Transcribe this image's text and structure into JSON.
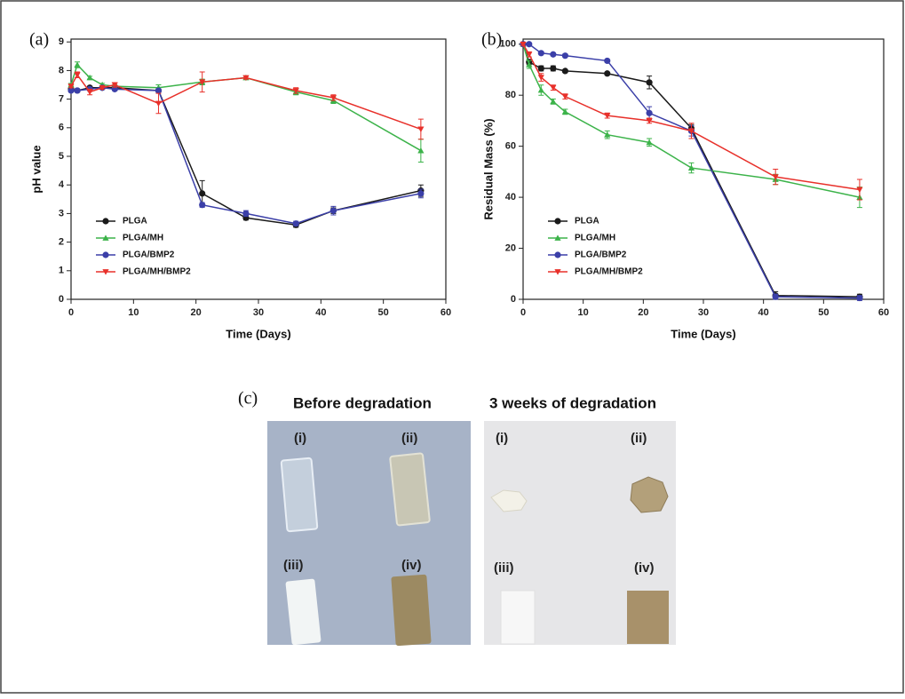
{
  "chart_data": [
    {
      "type": "line",
      "panel_label": "(a)",
      "x_label": "Time (Days)",
      "y_label": "pH value",
      "x": [
        0,
        1,
        3,
        5,
        7,
        14,
        21,
        28,
        36,
        42,
        56
      ],
      "xlim": [
        0,
        60
      ],
      "xticks": [
        0,
        10,
        20,
        30,
        40,
        50,
        60
      ],
      "ylim": [
        0,
        9.1
      ],
      "yticks": [
        0,
        1,
        2,
        3,
        4,
        5,
        6,
        7,
        8,
        9
      ],
      "legend": "lower left",
      "series": [
        {
          "name": "PLGA",
          "color": "#1a1a1a",
          "marker": "circle",
          "values": [
            7.35,
            7.3,
            7.4,
            7.4,
            7.4,
            7.3,
            3.7,
            2.85,
            2.6,
            3.1,
            3.8
          ],
          "errors": [
            0.05,
            0.05,
            0.05,
            0.05,
            0.05,
            0.05,
            0.45,
            0.08,
            0.08,
            0.1,
            0.2
          ]
        },
        {
          "name": "PLGA/MH",
          "color": "#3cb34a",
          "marker": "triangle",
          "values": [
            7.5,
            8.2,
            7.75,
            7.5,
            7.45,
            7.4,
            7.6,
            7.75,
            7.25,
            6.95,
            5.2
          ],
          "errors": [
            0.05,
            0.1,
            0.05,
            0.05,
            0.05,
            0.1,
            0.1,
            0.05,
            0.1,
            0.1,
            0.4
          ]
        },
        {
          "name": "PLGA/BMP2",
          "color": "#3b3fa8",
          "marker": "circle",
          "values": [
            7.3,
            7.3,
            7.35,
            7.4,
            7.35,
            7.3,
            3.3,
            3.0,
            2.65,
            3.1,
            3.7
          ],
          "errors": [
            0.05,
            0.05,
            0.05,
            0.05,
            0.05,
            0.05,
            0.08,
            0.1,
            0.08,
            0.15,
            0.15
          ]
        },
        {
          "name": "PLGA/MH/BMP2",
          "color": "#e8302a",
          "marker": "triangle-down",
          "values": [
            7.45,
            7.85,
            7.25,
            7.4,
            7.5,
            6.85,
            7.6,
            7.75,
            7.3,
            7.05,
            5.95
          ],
          "errors": [
            0.05,
            0.1,
            0.1,
            0.05,
            0.08,
            0.35,
            0.35,
            0.05,
            0.1,
            0.1,
            0.35
          ]
        }
      ]
    },
    {
      "type": "line",
      "panel_label": "(b)",
      "x_label": "Time (Days)",
      "y_label": "Residual Mass (%)",
      "x": [
        0,
        1,
        3,
        5,
        7,
        14,
        21,
        28,
        42,
        56
      ],
      "xlim": [
        0,
        60
      ],
      "xticks": [
        0,
        10,
        20,
        30,
        40,
        50,
        60
      ],
      "ylim": [
        0,
        102
      ],
      "yticks": [
        0,
        20,
        40,
        60,
        80,
        100
      ],
      "legend": "lower left",
      "series": [
        {
          "name": "PLGA",
          "color": "#1a1a1a",
          "marker": "circle",
          "values": [
            100,
            93,
            90.5,
            90.5,
            89.5,
            88.5,
            85,
            67,
            1.5,
            1
          ],
          "errors": [
            0.5,
            1,
            1,
            1,
            0.5,
            0.5,
            2.5,
            1.5,
            1.5,
            1
          ]
        },
        {
          "name": "PLGA/MH",
          "color": "#3cb34a",
          "marker": "triangle",
          "values": [
            100,
            92,
            82,
            77.5,
            73.5,
            64.5,
            61.5,
            51.5,
            47,
            40
          ],
          "errors": [
            0.5,
            1.5,
            2,
            1,
            1,
            1.5,
            1.5,
            2,
            2,
            4
          ]
        },
        {
          "name": "PLGA/BMP2",
          "color": "#3b3fa8",
          "marker": "circle",
          "values": [
            100,
            100,
            96.5,
            96,
            95.5,
            93.5,
            73,
            66,
            1,
            0.5
          ],
          "errors": [
            0.5,
            0.5,
            0.5,
            0.5,
            0.5,
            0.5,
            2.5,
            2,
            1,
            1
          ]
        },
        {
          "name": "PLGA/MH/BMP2",
          "color": "#e8302a",
          "marker": "triangle-down",
          "values": [
            100,
            96,
            87,
            83,
            79.5,
            72,
            70,
            66,
            48,
            43
          ],
          "errors": [
            0.5,
            1,
            1.5,
            1,
            1,
            1,
            1,
            3,
            3,
            4
          ]
        }
      ]
    }
  ],
  "photo_panel": {
    "label": "(c)",
    "panels": [
      {
        "title": "Before degradation",
        "samples": [
          "(i)",
          "(ii)",
          "(iii)",
          "(iv)"
        ]
      },
      {
        "title": "3 weeks of degradation",
        "samples": [
          "(i)",
          "(ii)",
          "(iii)",
          "(iv)"
        ]
      }
    ]
  }
}
